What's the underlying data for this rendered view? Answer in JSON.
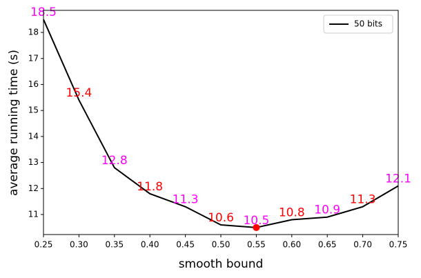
{
  "chart_data": {
    "type": "line",
    "x_label": "smooth bound",
    "y_label": "average running time (s)",
    "x": [
      0.25,
      0.3,
      0.35,
      0.4,
      0.45,
      0.5,
      0.55,
      0.6,
      0.65,
      0.7,
      0.75
    ],
    "series": [
      {
        "name": "50 bits",
        "color": "#000000",
        "values": [
          18.5,
          15.4,
          12.8,
          11.8,
          11.3,
          10.6,
          10.5,
          10.8,
          10.9,
          11.3,
          12.1
        ]
      }
    ],
    "label_colors": [
      "#ff00ff",
      "#ff0000"
    ],
    "min_marker_color": "#ff0000",
    "xlim": [
      0.25,
      0.75
    ],
    "xticks": [
      0.25,
      {
        "value": 0.3,
        "label": "0.30"
      },
      0.35,
      {
        "value": 0.4,
        "label": "0.40"
      },
      0.45,
      {
        "value": 0.5,
        "label": "0.50"
      },
      0.55,
      {
        "value": 0.6,
        "label": "0.60"
      },
      0.65,
      {
        "value": 0.7,
        "label": "0.70"
      },
      0.75
    ],
    "ylim": [
      10.23,
      18.85
    ],
    "yticks": [
      11,
      12,
      13,
      14,
      15,
      16,
      17,
      18
    ],
    "legend": "upper right"
  }
}
